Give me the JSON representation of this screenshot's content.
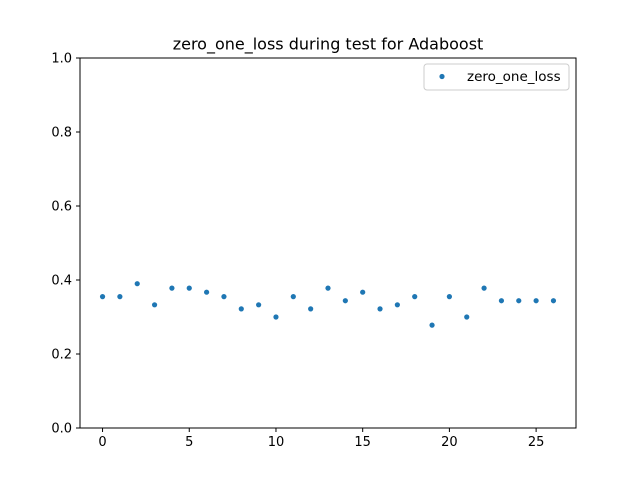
{
  "chart_data": {
    "type": "scatter",
    "title": "zero_one_loss during test for Adaboost",
    "xlabel": "",
    "ylabel": "",
    "xlim": [
      -1.3,
      27.3
    ],
    "ylim": [
      0.0,
      1.0
    ],
    "x_ticks": [
      0,
      5,
      10,
      15,
      20,
      25
    ],
    "x_tick_labels": [
      "0",
      "5",
      "10",
      "15",
      "20",
      "25"
    ],
    "y_ticks": [
      0.0,
      0.2,
      0.4,
      0.6,
      0.8,
      1.0
    ],
    "y_tick_labels": [
      "0.0",
      "0.2",
      "0.4",
      "0.6",
      "0.8",
      "1.0"
    ],
    "grid": false,
    "legend_position": "top-right",
    "series": [
      {
        "name": "zero_one_loss",
        "color": "#1f77b4",
        "x": [
          0,
          1,
          2,
          3,
          4,
          5,
          6,
          7,
          8,
          9,
          10,
          11,
          12,
          13,
          14,
          15,
          16,
          17,
          18,
          19,
          20,
          21,
          22,
          23,
          24,
          25,
          26
        ],
        "y": [
          0.355,
          0.355,
          0.39,
          0.333,
          0.378,
          0.378,
          0.367,
          0.355,
          0.322,
          0.333,
          0.3,
          0.355,
          0.322,
          0.378,
          0.344,
          0.367,
          0.322,
          0.333,
          0.355,
          0.278,
          0.355,
          0.3,
          0.378,
          0.344,
          0.344,
          0.344,
          0.344
        ]
      }
    ]
  }
}
